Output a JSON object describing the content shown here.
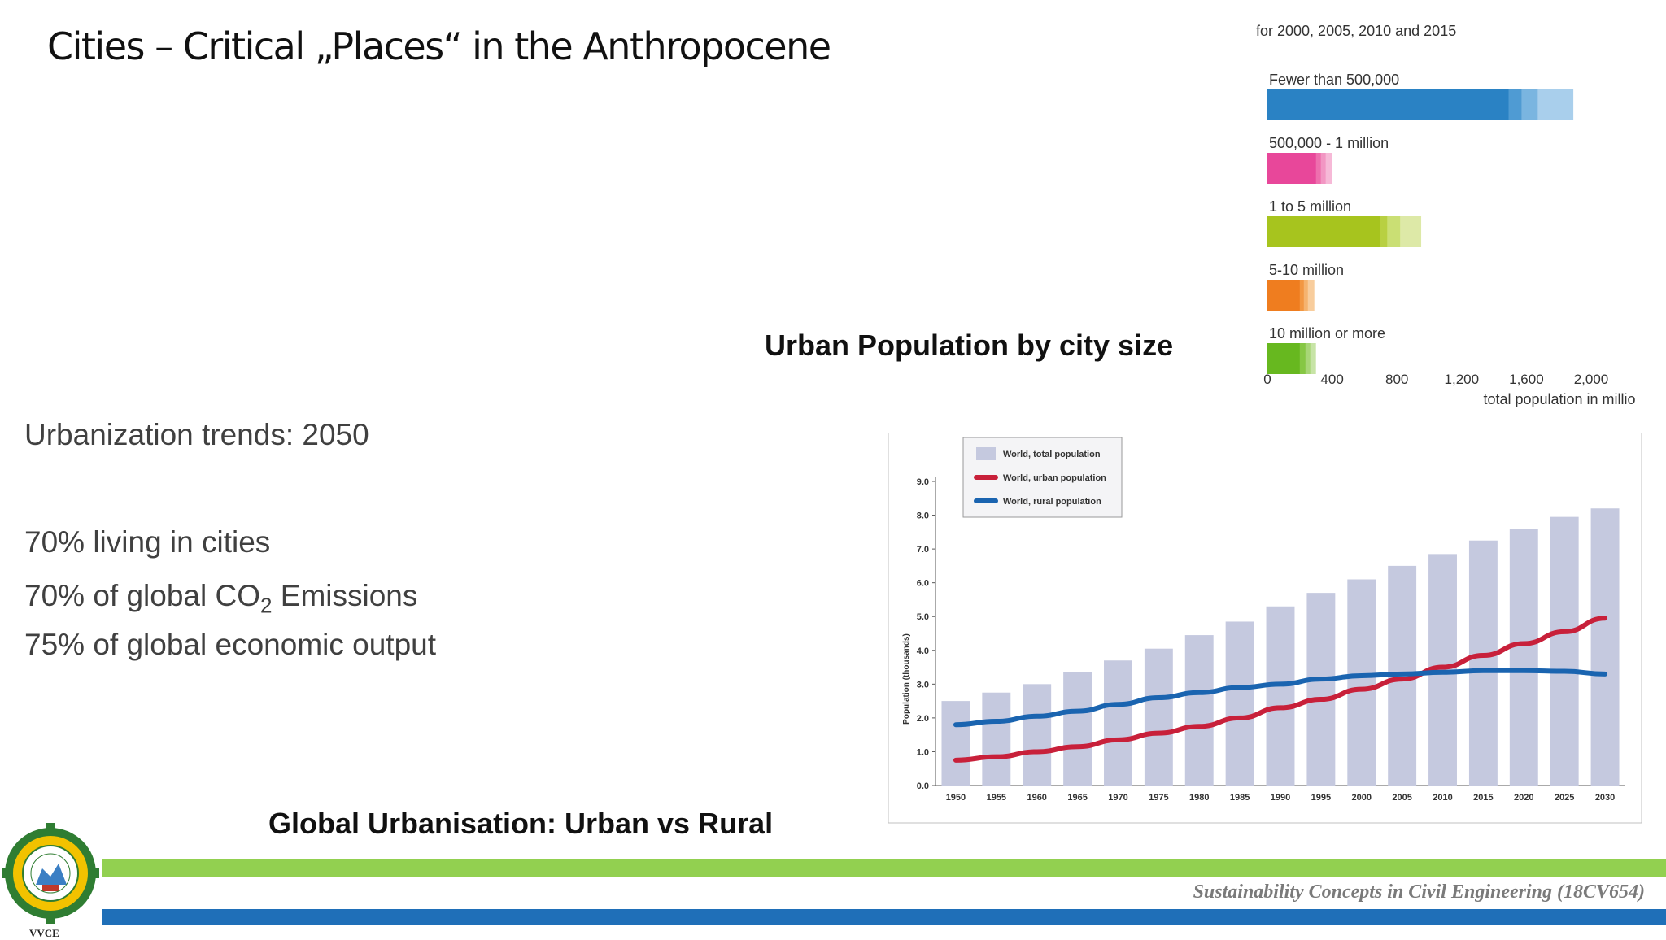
{
  "slide": {
    "title": "Cities – Critical „Places“ in the Anthropocene",
    "trends_heading": "Urbanization trends: 2050",
    "bullet1": "70% living in cities",
    "bullet2_pre": "70% of global CO",
    "bullet2_sub": "2",
    "bullet2_post": " Emissions",
    "bullet3": "75% of global economic output",
    "caption_right": "Urban Population by city size",
    "caption_bottom": "Global Urbanisation: Urban vs Rural",
    "footer": "Sustainability Concepts in Civil Engineering  (18CV654)",
    "logo_text": "VVCE",
    "colors": {
      "green_band": "#92d050",
      "blue_band": "#1f6fb8"
    }
  },
  "chart_data": [
    {
      "type": "bar",
      "title": "for 2000, 2005, 2010 and 2015",
      "xlabel": "total population in million",
      "xlim": [
        0,
        2000
      ],
      "x_ticks": [
        "0",
        "400",
        "800",
        "1,200",
        "1,600",
        "2,000"
      ],
      "categories": [
        "Fewer than 500,000",
        "500,000 - 1 million",
        "1 to 5 million",
        "5-10 million",
        "10 million or more"
      ],
      "colors": [
        [
          "#2a82c4",
          "#4f9bd3",
          "#7ab5e0",
          "#a9cfec"
        ],
        [
          "#e8479a",
          "#ee6fae",
          "#f296c3",
          "#f6b9d7"
        ],
        [
          "#a7c41e",
          "#b8d042",
          "#cadf74",
          "#dde9a7"
        ],
        [
          "#ef7d1f",
          "#f29742",
          "#f5b36f",
          "#f8cd9d"
        ],
        [
          "#67b81f",
          "#86c744",
          "#a8d677",
          "#c7e4a6"
        ]
      ],
      "series": [
        {
          "name": "2000",
          "values": [
            1490,
            300,
            695,
            200,
            200
          ]
        },
        {
          "name": "2005",
          "values": [
            1570,
            330,
            740,
            225,
            235
          ]
        },
        {
          "name": "2010",
          "values": [
            1670,
            360,
            820,
            250,
            265
          ]
        },
        {
          "name": "2015",
          "values": [
            1890,
            400,
            950,
            290,
            300
          ]
        }
      ]
    },
    {
      "type": "bar",
      "ylabel": "Population (thousands)",
      "ylim": [
        0,
        9.0
      ],
      "y_ticks": [
        "0.0",
        "1.0",
        "2.0",
        "3.0",
        "4.0",
        "5.0",
        "6.0",
        "7.0",
        "8.0",
        "9.0"
      ],
      "categories": [
        "1950",
        "1955",
        "1960",
        "1965",
        "1970",
        "1975",
        "1980",
        "1985",
        "1990",
        "1995",
        "2000",
        "2005",
        "2010",
        "2015",
        "2020",
        "2025",
        "2030"
      ],
      "series": [
        {
          "name": "World, total population",
          "kind": "bar",
          "color": "#c5c9df",
          "values": [
            2.5,
            2.75,
            3.0,
            3.35,
            3.7,
            4.05,
            4.45,
            4.85,
            5.3,
            5.7,
            6.1,
            6.5,
            6.85,
            7.25,
            7.6,
            7.95,
            8.2
          ]
        },
        {
          "name": "World, urban population",
          "kind": "line",
          "color": "#c8203a",
          "values": [
            0.75,
            0.85,
            1.0,
            1.15,
            1.35,
            1.55,
            1.75,
            2.0,
            2.3,
            2.55,
            2.85,
            3.15,
            3.5,
            3.85,
            4.2,
            4.55,
            4.95
          ]
        },
        {
          "name": "World, rural population",
          "kind": "line",
          "color": "#1a64b0",
          "values": [
            1.8,
            1.9,
            2.05,
            2.2,
            2.4,
            2.6,
            2.75,
            2.9,
            3.0,
            3.15,
            3.25,
            3.3,
            3.35,
            3.4,
            3.4,
            3.38,
            3.3
          ]
        }
      ],
      "legend": "top-left"
    }
  ]
}
